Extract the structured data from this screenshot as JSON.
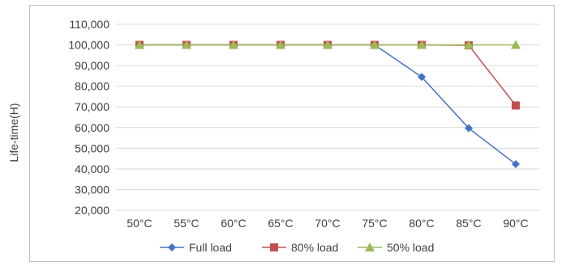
{
  "chart_data": {
    "type": "line",
    "title": "",
    "xlabel": "",
    "ylabel": "Life-time(H)",
    "categories": [
      "50°C",
      "55°C",
      "60°C",
      "65°C",
      "70°C",
      "75°C",
      "80°C",
      "85°C",
      "90°C"
    ],
    "ylim": [
      20000,
      110000
    ],
    "yticks": [
      "20,000",
      "30,000",
      "40,000",
      "50,000",
      "60,000",
      "70,000",
      "80,000",
      "90,000",
      "100,000",
      "110,000"
    ],
    "grid": "horizontal",
    "legend_position": "bottom",
    "series": [
      {
        "name": "Full load",
        "color": "#4472c4",
        "marker": "diamond",
        "values": [
          100000,
          100000,
          100000,
          100000,
          100000,
          100000,
          84500,
          59700,
          42300
        ]
      },
      {
        "name": "80% load",
        "color": "#c0504d",
        "marker": "square",
        "values": [
          100000,
          100000,
          100000,
          100000,
          100000,
          100000,
          100000,
          99800,
          70700
        ]
      },
      {
        "name": "50% load",
        "color": "#9bbb59",
        "marker": "triangle",
        "values": [
          100000,
          100000,
          100000,
          100000,
          100000,
          100000,
          100000,
          100000,
          100000
        ]
      }
    ]
  }
}
